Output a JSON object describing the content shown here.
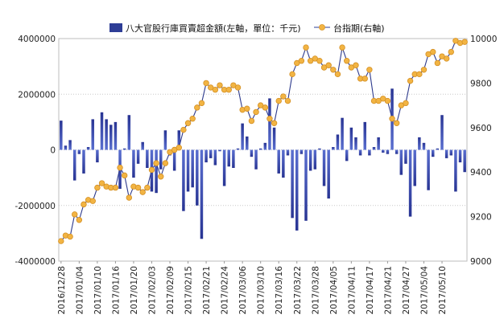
{
  "chart_data": {
    "type": "bar+line",
    "title": "",
    "legend": [
      {
        "name": "八大官股行庫買賣超金額(左軸，單位：千元)",
        "type": "bar",
        "color": "#2e3d96"
      },
      {
        "name": "台指期(右軸)",
        "type": "line",
        "color": "#f2b443"
      }
    ],
    "legend_position": "top",
    "y_left": {
      "min": -4000000,
      "max": 4000000,
      "ticks": [
        "4000000",
        "2000000",
        "0",
        "-2000000",
        "-4000000"
      ],
      "tick_values": [
        4000000,
        2000000,
        0,
        -2000000,
        -4000000
      ]
    },
    "y_right": {
      "min": 9000,
      "max": 10000,
      "ticks": [
        "10000",
        "9800",
        "9600",
        "9400",
        "9200",
        "9000"
      ],
      "tick_values": [
        10000,
        9800,
        9600,
        9400,
        9200,
        9000
      ]
    },
    "x_tick_labels": [
      "2016/12/28",
      "2017/01/04",
      "2017/01/10",
      "2017/01/16",
      "2017/01/20",
      "2017/02/03",
      "2017/02/09",
      "2017/02/15",
      "2017/02/21",
      "2017/02/24",
      "2017/03/06",
      "2017/03/10",
      "2017/03/16",
      "2017/03/22",
      "2017/03/28",
      "2017/04/05",
      "2017/04/11",
      "2017/04/17",
      "2017/04/21",
      "2017/04/27",
      "2017/05/04",
      "2017/05/10"
    ],
    "x_tick_every": 4,
    "grid": true,
    "bars": [
      1050000,
      150000,
      350000,
      -1100000,
      -150000,
      -850000,
      100000,
      1100000,
      -450000,
      1350000,
      1100000,
      900000,
      1000000,
      -1400000,
      50000,
      1250000,
      -1000000,
      -500000,
      280000,
      -650000,
      -1500000,
      -1550000,
      -700000,
      700000,
      -200000,
      -750000,
      700000,
      -2200000,
      -1500000,
      -1350000,
      -2000000,
      -3200000,
      -450000,
      -300000,
      -550000,
      -50000,
      -1300000,
      -600000,
      -650000,
      50000,
      950000,
      480000,
      -250000,
      -700000,
      50000,
      250000,
      1850000,
      800000,
      -850000,
      -1000000,
      -200000,
      -2450000,
      -2900000,
      -150000,
      -2550000,
      -750000,
      -700000,
      50000,
      -1300000,
      -1750000,
      100000,
      550000,
      1150000,
      -400000,
      800000,
      450000,
      -200000,
      1000000,
      -200000,
      100000,
      450000,
      -100000,
      -150000,
      2200000,
      -150000,
      -900000,
      -500000,
      -2400000,
      -1300000,
      450000,
      250000,
      -1450000,
      -250000,
      50000,
      1250000,
      -300000,
      -200000,
      -1500000,
      -450000,
      -800000
    ],
    "line": [
      9090,
      9115,
      9110,
      9210,
      9185,
      9255,
      9275,
      9270,
      9330,
      9350,
      9335,
      9330,
      9330,
      9420,
      9385,
      9285,
      9335,
      9330,
      9310,
      9330,
      9410,
      9440,
      9380,
      9440,
      9490,
      9500,
      9510,
      9590,
      9620,
      9640,
      9690,
      9710,
      9800,
      9780,
      9770,
      9790,
      9770,
      9770,
      9790,
      9780,
      9680,
      9685,
      9630,
      9670,
      9700,
      9690,
      9640,
      9620,
      9720,
      9740,
      9720,
      9840,
      9890,
      9900,
      9960,
      9900,
      9910,
      9900,
      9870,
      9880,
      9860,
      9840,
      9960,
      9900,
      9870,
      9880,
      9820,
      9820,
      9860,
      9720,
      9720,
      9730,
      9720,
      9640,
      9620,
      9700,
      9710,
      9810,
      9840,
      9840,
      9860,
      9930,
      9940,
      9890,
      9920,
      9910,
      9940,
      9990,
      9980,
      9985
    ]
  }
}
